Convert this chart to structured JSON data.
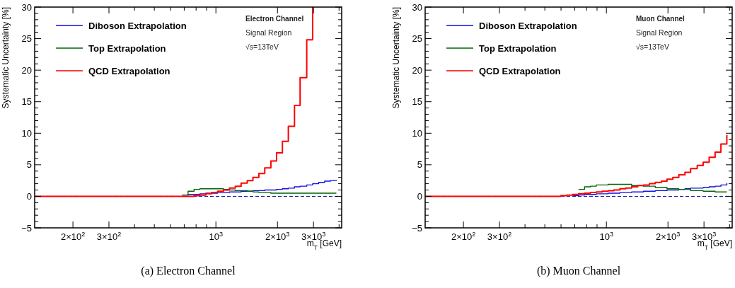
{
  "chart_data": [
    {
      "type": "step",
      "title": "(a) Electron Channel",
      "xlabel": "m$_{T}$ [GeV]",
      "ylabel": "Systematic Uncertainty [%]",
      "log": "x",
      "legend": "top left",
      "annotations": [
        "Electron Channel",
        "Signal Region",
        "√s=13TeV"
      ],
      "x": [
        130,
        598,
        640,
        684,
        731,
        782,
        835,
        892,
        953,
        1019,
        1088,
        1164,
        1244,
        1328,
        1423,
        1517,
        1622,
        1733,
        1857,
        1979,
        2114,
        2260,
        2422,
        2580,
        2780,
        2972,
        3180,
        3400,
        3630,
        3880
      ],
      "xlim": [
        130,
        4120
      ],
      "ylim": [
        -5,
        30
      ],
      "xticks": [
        {
          "value": 200,
          "label": "2×10$^{2}$"
        },
        {
          "value": 300,
          "label": "3×10$^{2}$"
        },
        {
          "value": 400,
          "label": null
        },
        {
          "value": 500,
          "label": null
        },
        {
          "value": 600,
          "label": null
        },
        {
          "value": 700,
          "label": null
        },
        {
          "value": 800,
          "label": null
        },
        {
          "value": 900,
          "label": null
        },
        {
          "value": 1000,
          "label": "10$^{3}$"
        },
        {
          "value": 2000,
          "label": "2×10$^{3}$"
        },
        {
          "value": 3000,
          "label": "3×10$^{3}$"
        },
        {
          "value": 4000,
          "label": null
        }
      ],
      "yticks": [
        -5,
        {
          "value": -4,
          "label": null
        },
        {
          "value": -3,
          "label": null
        },
        {
          "value": -2,
          "label": null
        },
        {
          "value": -1,
          "label": null
        },
        0,
        {
          "value": 1,
          "label": null
        },
        {
          "value": 2,
          "label": null
        },
        {
          "value": 3,
          "label": null
        },
        {
          "value": 4,
          "label": null
        },
        5,
        {
          "value": 6,
          "label": null
        },
        {
          "value": 7,
          "label": null
        },
        {
          "value": 8,
          "label": null
        },
        {
          "value": 9,
          "label": null
        },
        10,
        {
          "value": 11,
          "label": null
        },
        {
          "value": 12,
          "label": null
        },
        {
          "value": 13,
          "label": null
        },
        {
          "value": 14,
          "label": null
        },
        15,
        {
          "value": 16,
          "label": null
        },
        {
          "value": 17,
          "label": null
        },
        {
          "value": 18,
          "label": null
        },
        {
          "value": 19,
          "label": null
        },
        20,
        {
          "value": 21,
          "label": null
        },
        {
          "value": 22,
          "label": null
        },
        {
          "value": 23,
          "label": null
        },
        {
          "value": 24,
          "label": null
        },
        25,
        {
          "value": 26,
          "label": null
        },
        {
          "value": 27,
          "label": null
        },
        {
          "value": 28,
          "label": null
        },
        {
          "value": 29,
          "label": null
        },
        30
      ],
      "ref_lines": [
        {
          "axis": "y",
          "value": 0,
          "color": "#000099",
          "line_style": "dashed"
        }
      ],
      "series": [
        {
          "name": "Diboson Extrapolation",
          "color": "#1010e0",
          "values": [
            null,
            null,
            null,
            0.2,
            0.3,
            0.3,
            0.4,
            0.5,
            0.5,
            0.6,
            0.6,
            0.7,
            0.7,
            0.8,
            0.8,
            0.9,
            0.9,
            1.0,
            1.0,
            1.1,
            1.2,
            1.3,
            1.5,
            1.6,
            1.8,
            2.0,
            2.2,
            2.4,
            2.5,
            2.6
          ]
        },
        {
          "name": "Top Extrapolation",
          "color": "#006600",
          "values": [
            null,
            null,
            null,
            0.2,
            0.8,
            1.1,
            1.2,
            1.2,
            1.2,
            1.2,
            1.1,
            1.0,
            0.9,
            0.9,
            0.8,
            0.7,
            0.6,
            0.6,
            0.5,
            0.5,
            0.5,
            0.5,
            0.5,
            0.5,
            0.5,
            0.5,
            0.5,
            0.5,
            0.5,
            0.5
          ]
        },
        {
          "name": "QCD Extrapolation",
          "color": "#ff0000",
          "values": [
            0,
            0,
            0,
            0,
            0,
            0.1,
            0.2,
            0.4,
            0.6,
            0.8,
            1.0,
            1.3,
            1.6,
            2.1,
            2.5,
            3.0,
            3.6,
            4.5,
            5.6,
            6.9,
            8.7,
            11.1,
            14.4,
            18.8,
            24.8,
            30,
            null,
            null,
            null,
            null
          ]
        }
      ]
    },
    {
      "type": "step",
      "title": "(b) Muon Channel",
      "xlabel": "m$_{T}$ [GeV]",
      "ylabel": "Systematic Uncertainty [%]",
      "log": "x",
      "legend": "top left",
      "annotations": [
        "Muon Channel",
        "Signal Region",
        "√s=13TeV"
      ],
      "x": [
        130,
        598,
        640,
        684,
        731,
        782,
        835,
        892,
        953,
        1019,
        1088,
        1164,
        1244,
        1328,
        1423,
        1517,
        1622,
        1733,
        1857,
        1979,
        2114,
        2260,
        2422,
        2580,
        2780,
        2972,
        3180,
        3400,
        3630,
        3880
      ],
      "xlim": [
        130,
        4120
      ],
      "ylim": [
        -5,
        30
      ],
      "xticks": [
        {
          "value": 200,
          "label": "2×10$^{2}$"
        },
        {
          "value": 300,
          "label": "3×10$^{2}$"
        },
        {
          "value": 400,
          "label": null
        },
        {
          "value": 500,
          "label": null
        },
        {
          "value": 600,
          "label": null
        },
        {
          "value": 700,
          "label": null
        },
        {
          "value": 800,
          "label": null
        },
        {
          "value": 900,
          "label": null
        },
        {
          "value": 1000,
          "label": "10$^{3}$"
        },
        {
          "value": 2000,
          "label": "2×10$^{3}$"
        },
        {
          "value": 3000,
          "label": "3×10$^{3}$"
        },
        {
          "value": 4000,
          "label": null
        }
      ],
      "yticks": [
        -5,
        {
          "value": -4,
          "label": null
        },
        {
          "value": -3,
          "label": null
        },
        {
          "value": -2,
          "label": null
        },
        {
          "value": -1,
          "label": null
        },
        0,
        {
          "value": 1,
          "label": null
        },
        {
          "value": 2,
          "label": null
        },
        {
          "value": 3,
          "label": null
        },
        {
          "value": 4,
          "label": null
        },
        5,
        {
          "value": 6,
          "label": null
        },
        {
          "value": 7,
          "label": null
        },
        {
          "value": 8,
          "label": null
        },
        {
          "value": 9,
          "label": null
        },
        10,
        {
          "value": 11,
          "label": null
        },
        {
          "value": 12,
          "label": null
        },
        {
          "value": 13,
          "label": null
        },
        {
          "value": 14,
          "label": null
        },
        15,
        {
          "value": 16,
          "label": null
        },
        {
          "value": 17,
          "label": null
        },
        {
          "value": 18,
          "label": null
        },
        {
          "value": 19,
          "label": null
        },
        20,
        {
          "value": 21,
          "label": null
        },
        {
          "value": 22,
          "label": null
        },
        {
          "value": 23,
          "label": null
        },
        {
          "value": 24,
          "label": null
        },
        25,
        {
          "value": 26,
          "label": null
        },
        {
          "value": 27,
          "label": null
        },
        {
          "value": 28,
          "label": null
        },
        {
          "value": 29,
          "label": null
        },
        30
      ],
      "ref_lines": [
        {
          "axis": "y",
          "value": 0,
          "color": "#000099",
          "line_style": "dashed"
        }
      ],
      "series": [
        {
          "name": "Diboson Extrapolation",
          "color": "#1010e0",
          "values": [
            null,
            null,
            null,
            0.1,
            0.2,
            0.3,
            0.3,
            0.4,
            0.4,
            0.5,
            0.5,
            0.6,
            0.6,
            0.7,
            0.7,
            0.8,
            0.8,
            0.9,
            0.9,
            1.0,
            1.0,
            1.1,
            1.2,
            1.3,
            1.3,
            1.4,
            1.5,
            1.6,
            1.8,
            2.1
          ]
        },
        {
          "name": "Top Extrapolation",
          "color": "#006600",
          "values": [
            null,
            null,
            null,
            null,
            1.1,
            1.5,
            1.6,
            1.8,
            1.8,
            1.9,
            1.9,
            1.9,
            1.9,
            1.7,
            1.7,
            1.6,
            1.6,
            1.4,
            1.4,
            1.2,
            1.2,
            1.1,
            1.1,
            0.9,
            0.9,
            0.8,
            0.8,
            0.7,
            0.7,
            0.7
          ]
        },
        {
          "name": "QCD Extrapolation",
          "color": "#ff0000",
          "values": [
            0,
            0.1,
            0.2,
            0.3,
            0.4,
            0.5,
            0.6,
            0.7,
            0.8,
            0.9,
            1.0,
            1.2,
            1.3,
            1.5,
            1.7,
            1.8,
            2.0,
            2.2,
            2.4,
            2.7,
            3.0,
            3.4,
            3.8,
            4.4,
            4.9,
            5.4,
            6.2,
            7.0,
            8.3,
            9.7
          ]
        }
      ]
    }
  ]
}
